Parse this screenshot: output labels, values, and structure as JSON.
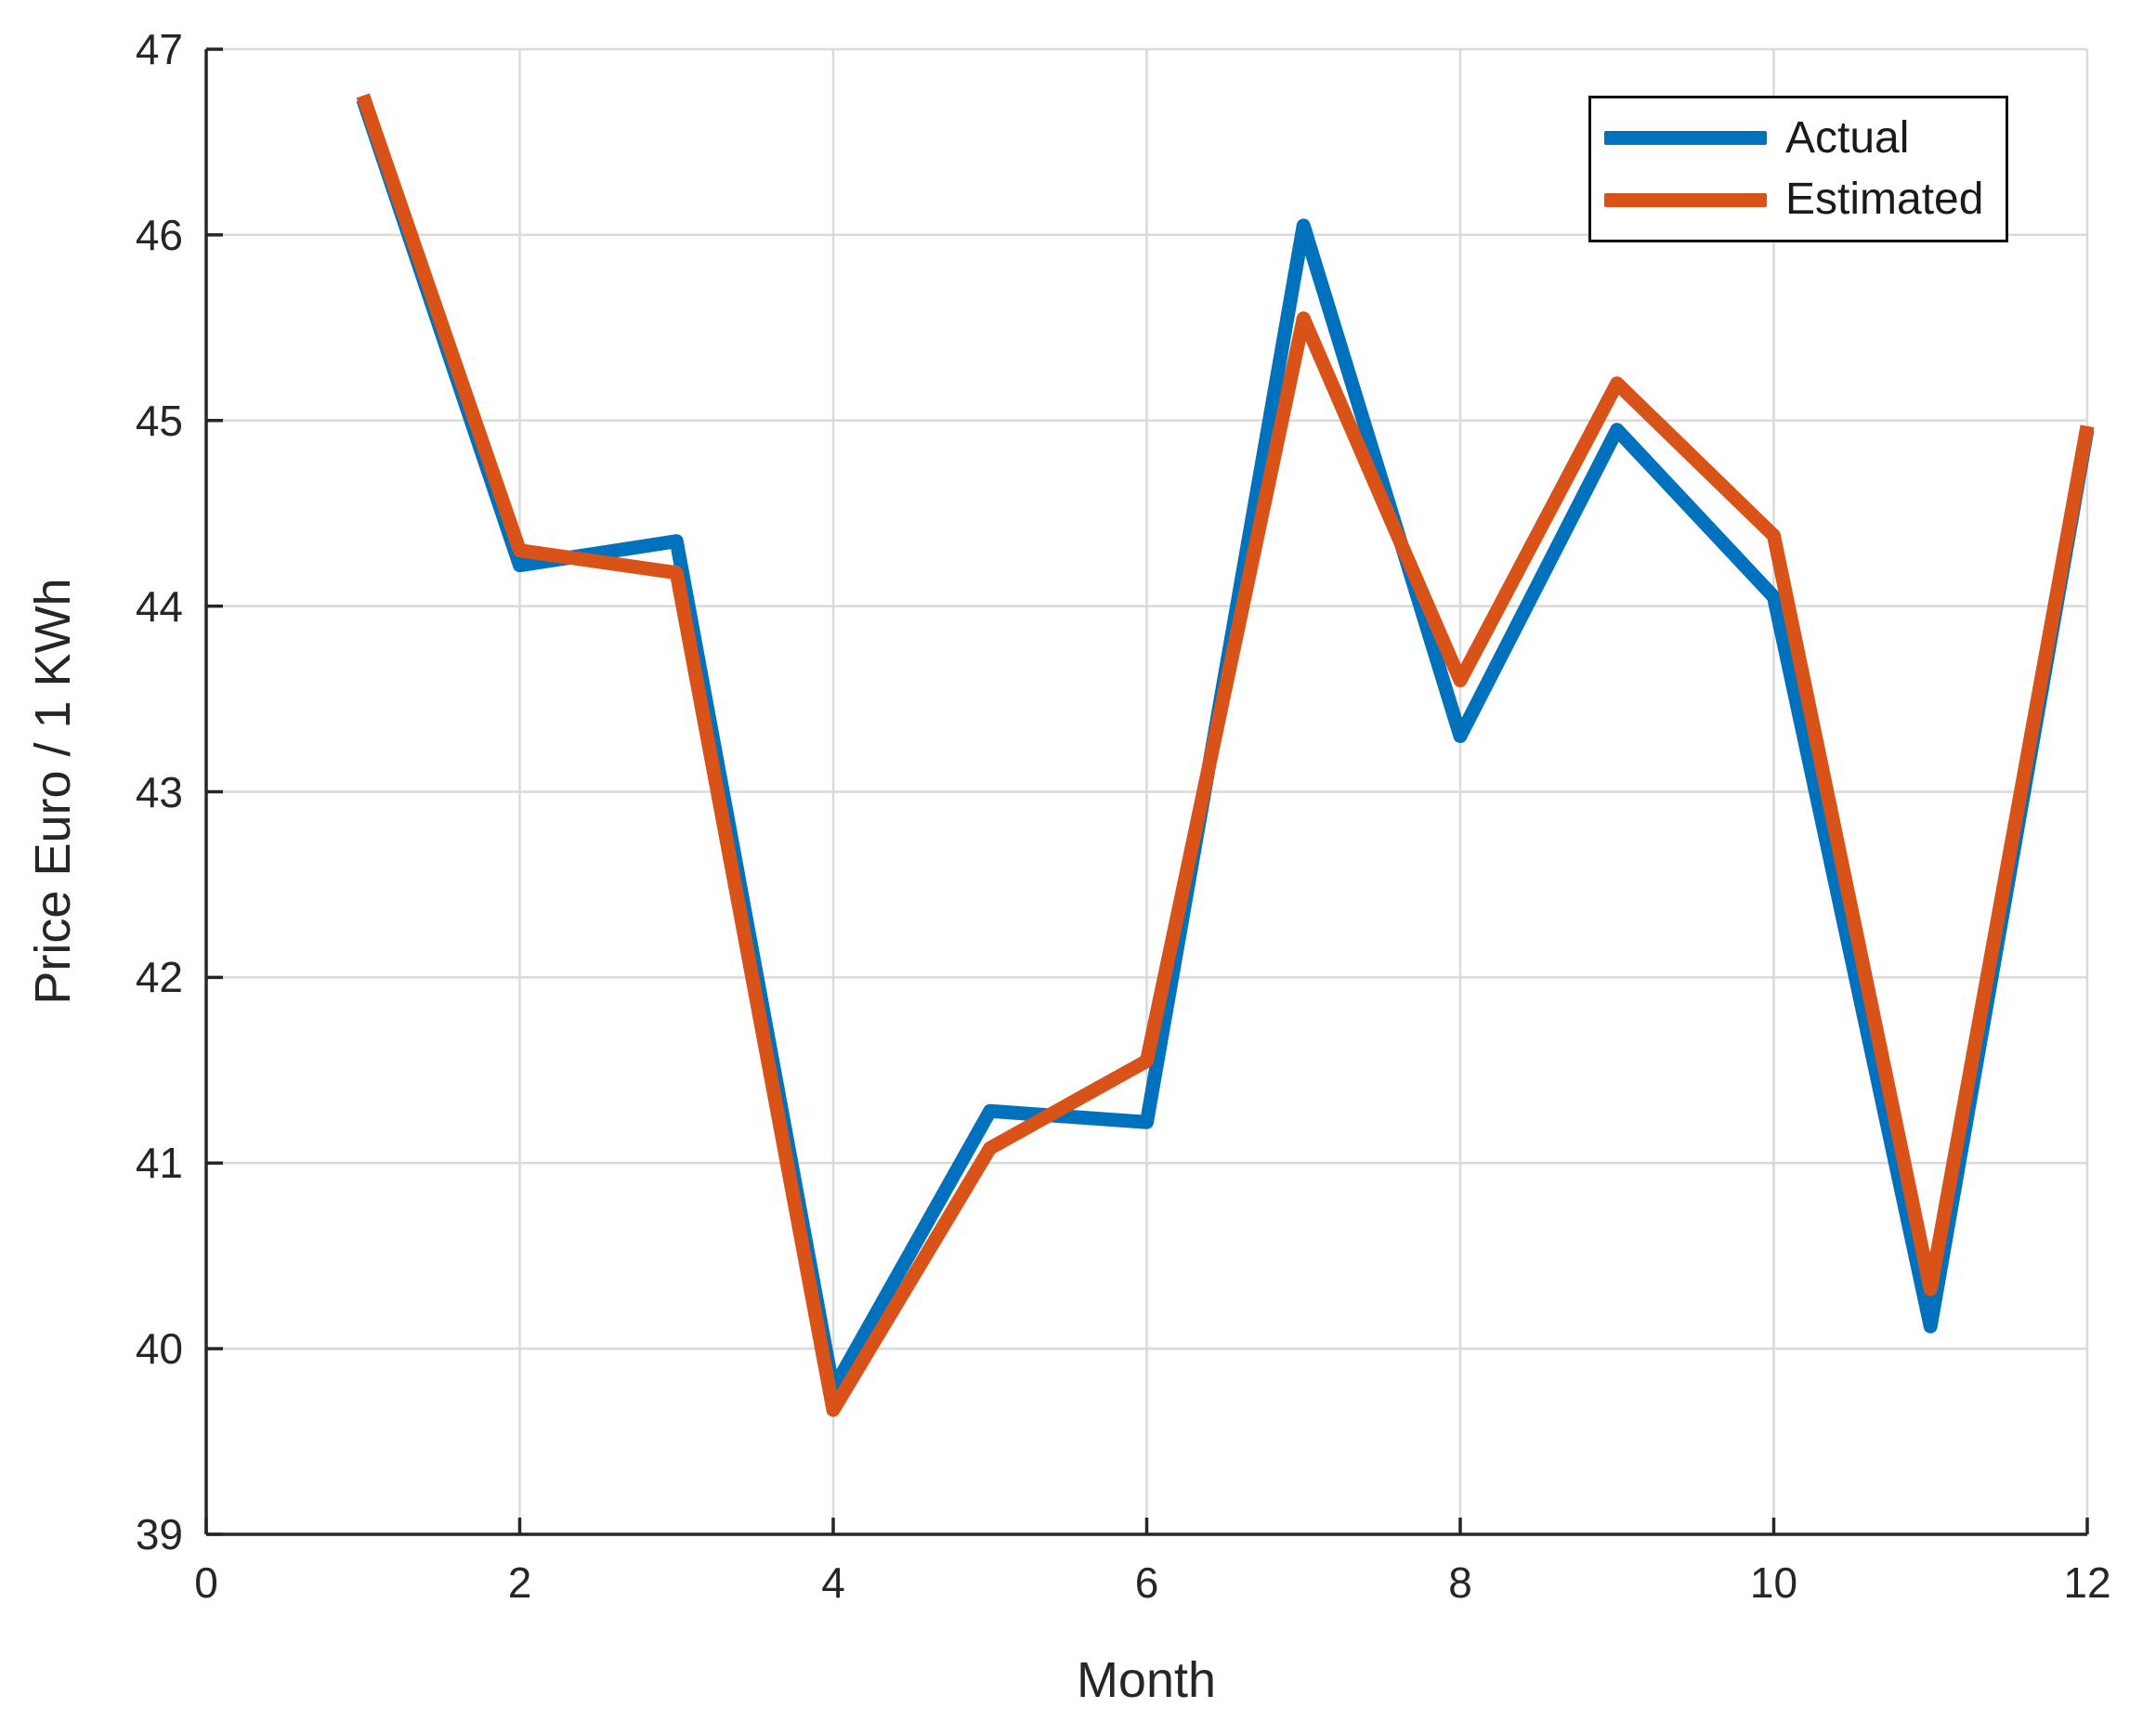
{
  "chart_data": {
    "type": "line",
    "title": "",
    "xlabel": "Month",
    "ylabel": "Price Euro / 1 KWh",
    "x": [
      1,
      2,
      3,
      4,
      5,
      6,
      7,
      8,
      9,
      10,
      11,
      12
    ],
    "series": [
      {
        "name": "Actual",
        "color": "#0072BD",
        "values": [
          46.73,
          44.22,
          44.35,
          39.78,
          41.28,
          41.22,
          46.05,
          43.3,
          44.95,
          44.05,
          40.12,
          44.95
        ]
      },
      {
        "name": "Estimated",
        "color": "#D95319",
        "values": [
          46.75,
          44.3,
          44.18,
          39.67,
          41.08,
          41.55,
          45.55,
          43.6,
          45.2,
          44.38,
          40.32,
          44.97
        ]
      }
    ],
    "xlim": [
      0,
      12
    ],
    "ylim": [
      39,
      47
    ],
    "x_ticks": [
      0,
      2,
      4,
      6,
      8,
      10,
      12
    ],
    "y_ticks": [
      39,
      40,
      41,
      42,
      43,
      44,
      45,
      46,
      47
    ],
    "grid": true,
    "legend_position": "top-right",
    "colors": {
      "grid": "#dadada",
      "spine": "#262626",
      "tick_text": "#262626",
      "background": "#ffffff"
    }
  }
}
